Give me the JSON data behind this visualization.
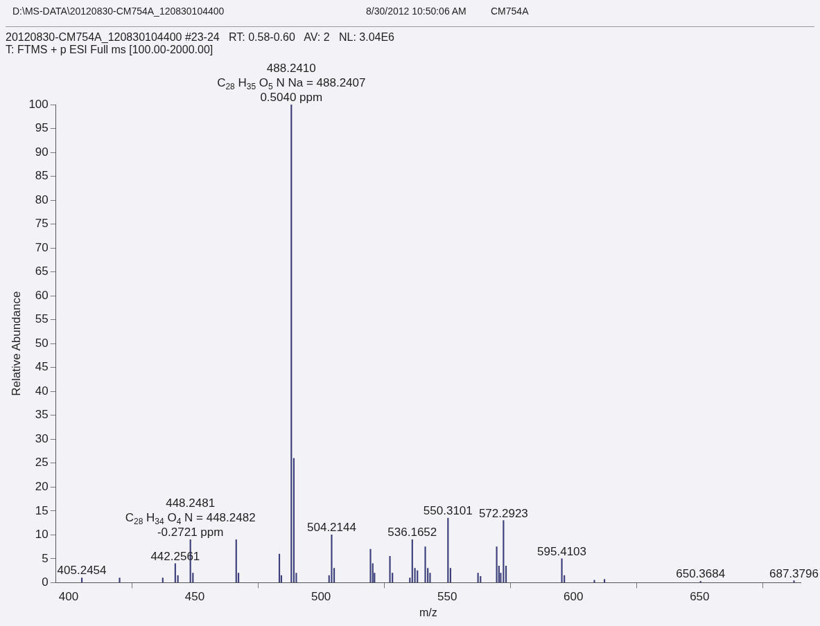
{
  "chart_data": {
    "type": "bar",
    "title": "D:\\MS-DATA\\20120830-CM754A_120830104400",
    "subtitle": "20120830-CM754A_120830104400 #23-24   RT: 0.58-0.60   AV: 2   NL: 3.04E6\nT: FTMS + p ESI Full ms [100.00-2000.00]",
    "xlabel": "m/z",
    "ylabel": "Relative Abundance",
    "x": [
      405.2454,
      420.2,
      437.3,
      442.2561,
      443.3,
      448.2481,
      449.25,
      466.4,
      467.3,
      483.5,
      484.3,
      488.241,
      489.24,
      490.2,
      503.2,
      504.2144,
      505.2,
      519.6,
      520.5,
      521.2,
      527.3,
      528.3,
      535.2,
      536.1652,
      537.2,
      538.2,
      541.3,
      542.3,
      543.2,
      550.3101,
      551.3,
      562.2,
      563.2,
      569.6,
      570.5,
      571.2,
      572.2923,
      573.3,
      595.4103,
      596.4,
      608.3,
      612.3,
      650.3684,
      687.3796
    ],
    "series": [
      {
        "color": "#3d3f7a",
        "values": [
          1,
          1,
          1,
          4,
          1.5,
          9,
          2,
          9,
          2,
          6,
          1.5,
          100,
          26,
          2,
          1.5,
          10,
          3,
          7,
          4,
          2,
          5.5,
          2,
          1,
          9,
          3,
          2.5,
          7.5,
          3,
          2,
          13.5,
          3,
          2,
          1.3,
          7.5,
          3.5,
          2,
          13,
          3.5,
          5,
          1.5,
          0.5,
          0.7,
          0.3,
          0.4
        ]
      }
    ],
    "xlim": [
      395,
      690
    ],
    "xticks": [
      400,
      450,
      500,
      550,
      600,
      650
    ],
    "ylim": [
      0,
      100
    ],
    "yticks": [
      0,
      5,
      10,
      15,
      20,
      25,
      30,
      35,
      40,
      45,
      50,
      55,
      60,
      65,
      70,
      75,
      80,
      85,
      90,
      95,
      100
    ],
    "grid": false,
    "legend": false,
    "annotations": [
      "8/30/2012 10:50:06 AM",
      "CM754A",
      {
        "text": "488.2410",
        "x": 488.241,
        "y": 100
      },
      {
        "text": "C$_{28}$ H$_{35}$ O$_{5}$ N Na = 488.2407",
        "x": 488.241,
        "y": 100
      },
      {
        "text": "0.5040 ppm",
        "x": 488.241,
        "y": 100
      },
      {
        "text": "448.2481",
        "x": 448.2481,
        "y": 9
      },
      {
        "text": "C$_{28}$ H$_{34}$ O$_{4}$ N = 448.2482",
        "x": 448.2481,
        "y": 9
      },
      {
        "text": "-0.2721 ppm",
        "x": 448.2481,
        "y": 9
      },
      {
        "text": "405.2454",
        "x": 405.2454,
        "y": 1
      },
      {
        "text": "442.2561",
        "x": 442.2561,
        "y": 4
      },
      {
        "text": "504.2144",
        "x": 504.2144,
        "y": 10
      },
      {
        "text": "536.1652",
        "x": 536.1652,
        "y": 9
      },
      {
        "text": "550.3101",
        "x": 550.3101,
        "y": 13.5
      },
      {
        "text": "572.2923",
        "x": 572.2923,
        "y": 13
      },
      {
        "text": "595.4103",
        "x": 595.4103,
        "y": 5
      },
      {
        "text": "650.3684",
        "x": 650.3684,
        "y": 0.3
      },
      {
        "text": "687.3796",
        "x": 687.3796,
        "y": 0.4
      }
    ]
  }
}
